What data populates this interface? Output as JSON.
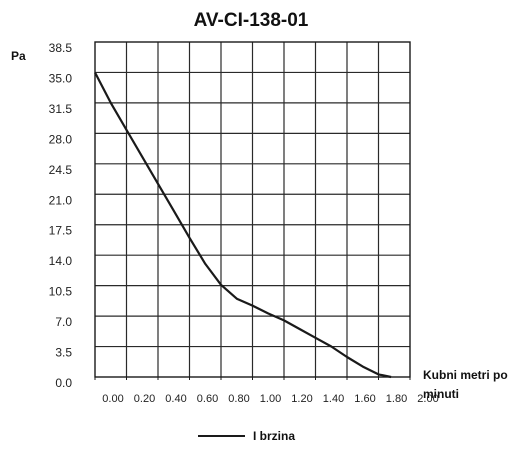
{
  "chart_data": {
    "type": "line",
    "title": "AV-CI-138-01",
    "ylabel": "Pa",
    "xlabel": "Kubni metri po minuti",
    "xlim": [
      0.0,
      2.0
    ],
    "ylim": [
      0.0,
      38.5
    ],
    "x_ticks": [
      "0.00",
      "0.20",
      "0.40",
      "0.60",
      "0.80",
      "1.00",
      "1.20",
      "1.40",
      "1.60",
      "1.80",
      "2.00"
    ],
    "y_ticks": [
      "0.0",
      "3.5",
      "7.0",
      "10.5",
      "14.0",
      "17.5",
      "21.0",
      "24.5",
      "28.0",
      "31.5",
      "35.0",
      "38.5"
    ],
    "grid": true,
    "legend_position": "bottom-center",
    "series": [
      {
        "name": "I brzina",
        "color": "#1a1a1a",
        "x": [
          0.0,
          0.1,
          0.2,
          0.3,
          0.4,
          0.5,
          0.6,
          0.7,
          0.8,
          0.9,
          1.0,
          1.1,
          1.2,
          1.3,
          1.4,
          1.5,
          1.6,
          1.7,
          1.8,
          1.88
        ],
        "y": [
          35.0,
          31.5,
          28.4,
          25.3,
          22.2,
          19.1,
          16.0,
          13.0,
          10.6,
          9.0,
          8.2,
          7.3,
          6.5,
          5.5,
          4.5,
          3.5,
          2.3,
          1.2,
          0.3,
          0.0
        ]
      }
    ]
  }
}
